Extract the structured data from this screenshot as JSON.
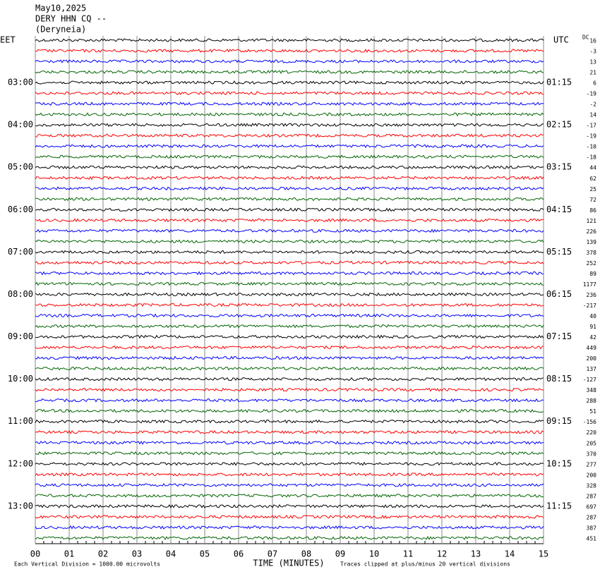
{
  "header": {
    "date": "May10,2025",
    "station": "DERY HHN CQ --",
    "location": "(Deryneia)"
  },
  "left_zone": "EET",
  "right_zone": "UTC",
  "dc_label": "DC",
  "left_times": [
    "03:00",
    "04:00",
    "05:00",
    "06:00",
    "07:00",
    "08:00",
    "09:00",
    "10:00",
    "11:00",
    "12:00",
    "13:00"
  ],
  "right_times": [
    "01:15",
    "02:15",
    "03:15",
    "04:15",
    "05:15",
    "06:15",
    "07:15",
    "08:15",
    "09:15",
    "10:15",
    "11:15"
  ],
  "dc_values": [
    16,
    -3,
    13,
    21,
    6,
    -19,
    -2,
    14,
    -17,
    -19,
    -10,
    -18,
    44,
    62,
    25,
    72,
    86,
    121,
    226,
    139,
    378,
    252,
    89,
    1177,
    236,
    -217,
    40,
    91,
    42,
    449,
    200,
    137,
    -127,
    348,
    288,
    51,
    -156,
    220,
    205,
    370,
    277,
    200,
    328,
    287,
    697,
    287,
    387,
    451
  ],
  "x_ticks": [
    "00",
    "01",
    "02",
    "03",
    "04",
    "05",
    "06",
    "07",
    "08",
    "09",
    "10",
    "11",
    "12",
    "13",
    "14",
    "15"
  ],
  "x_title": "TIME (MINUTES)",
  "footer_left": "Each Vertical Division = 1000.00 microvolts",
  "footer_right": "Traces clipped at plus/minus 20 vertical divisions",
  "trace_colors": [
    "#000000",
    "#ff0000",
    "#0000ff",
    "#006400"
  ]
}
